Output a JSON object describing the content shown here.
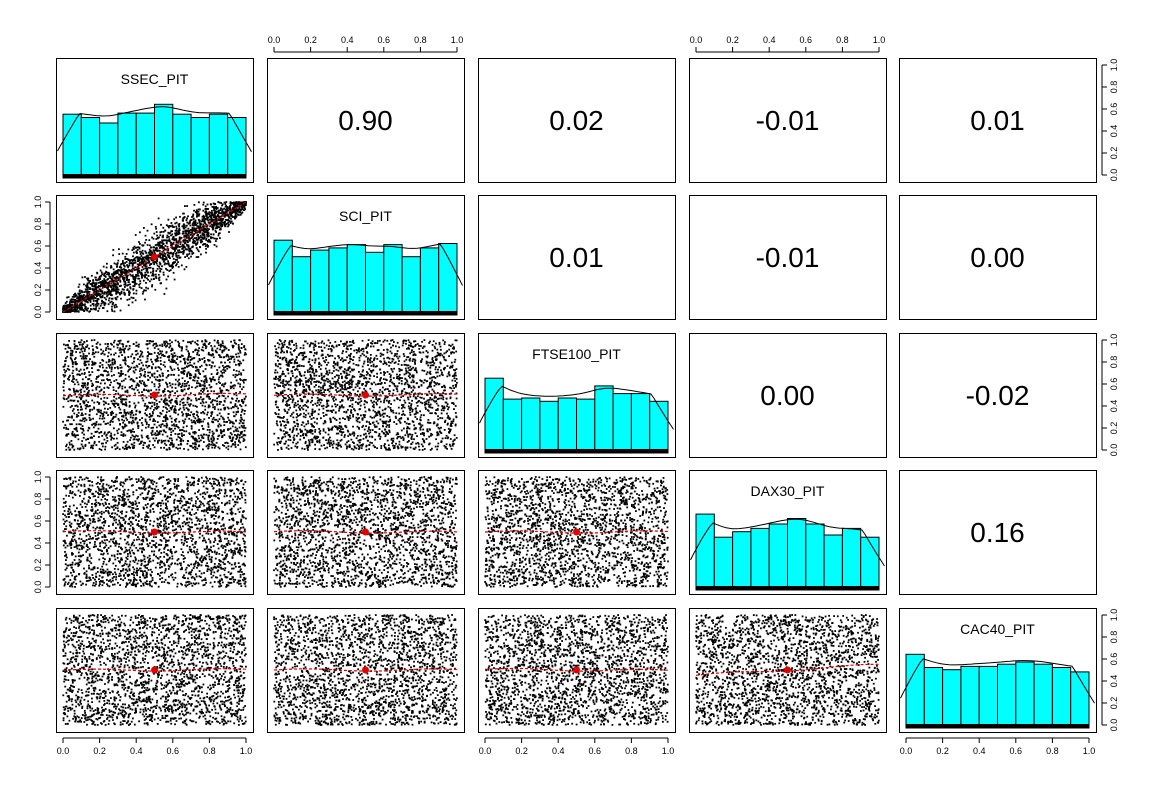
{
  "chart_data": {
    "type": "scatter-matrix",
    "variables": [
      "SSEC_PIT",
      "SCI_PIT",
      "FTSE100_PIT",
      "DAX30_PIT",
      "CAC40_PIT"
    ],
    "correlations": [
      {
        "row": 0,
        "col": 1,
        "value": "0.90"
      },
      {
        "row": 0,
        "col": 2,
        "value": "0.02"
      },
      {
        "row": 0,
        "col": 3,
        "value": "-0.01"
      },
      {
        "row": 0,
        "col": 4,
        "value": "0.01"
      },
      {
        "row": 1,
        "col": 2,
        "value": "0.01"
      },
      {
        "row": 1,
        "col": 3,
        "value": "-0.01"
      },
      {
        "row": 1,
        "col": 4,
        "value": "0.00"
      },
      {
        "row": 2,
        "col": 3,
        "value": "0.00"
      },
      {
        "row": 2,
        "col": 4,
        "value": "-0.02"
      },
      {
        "row": 3,
        "col": 4,
        "value": "0.16"
      }
    ],
    "scatter_correlations": [
      [
        1,
        0,
        0.9
      ],
      [
        2,
        0,
        0.02
      ],
      [
        2,
        1,
        0.01
      ],
      [
        3,
        0,
        -0.01
      ],
      [
        3,
        1,
        -0.01
      ],
      [
        3,
        2,
        0.0
      ],
      [
        4,
        0,
        0.01
      ],
      [
        4,
        1,
        0.0
      ],
      [
        4,
        2,
        -0.02
      ],
      [
        4,
        3,
        0.16
      ]
    ],
    "histograms": [
      {
        "variable": "SSEC_PIT",
        "bin_edges": [
          0,
          0.1,
          0.2,
          0.3,
          0.4,
          0.5,
          0.6,
          0.7,
          0.8,
          0.9,
          1.0
        ],
        "heights": [
          0.58,
          0.55,
          0.5,
          0.59,
          0.59,
          0.67,
          0.58,
          0.55,
          0.58,
          0.55
        ]
      },
      {
        "variable": "SCI_PIT",
        "bin_edges": [
          0,
          0.1,
          0.2,
          0.3,
          0.4,
          0.5,
          0.6,
          0.7,
          0.8,
          0.9,
          1.0
        ],
        "heights": [
          0.68,
          0.53,
          0.59,
          0.61,
          0.64,
          0.57,
          0.64,
          0.53,
          0.61,
          0.65
        ]
      },
      {
        "variable": "FTSE100_PIT",
        "bin_edges": [
          0,
          0.1,
          0.2,
          0.3,
          0.4,
          0.5,
          0.6,
          0.7,
          0.8,
          0.9,
          1.0
        ],
        "heights": [
          0.68,
          0.49,
          0.5,
          0.47,
          0.5,
          0.49,
          0.61,
          0.54,
          0.54,
          0.47
        ]
      },
      {
        "variable": "DAX30_PIT",
        "bin_edges": [
          0,
          0.1,
          0.2,
          0.3,
          0.4,
          0.5,
          0.6,
          0.7,
          0.8,
          0.9,
          1.0
        ],
        "heights": [
          0.69,
          0.48,
          0.53,
          0.56,
          0.6,
          0.65,
          0.6,
          0.5,
          0.56,
          0.48
        ]
      },
      {
        "variable": "CAC40_PIT",
        "bin_edges": [
          0,
          0.1,
          0.2,
          0.3,
          0.4,
          0.5,
          0.6,
          0.7,
          0.8,
          0.9,
          1.0
        ],
        "heights": [
          0.67,
          0.55,
          0.53,
          0.56,
          0.56,
          0.58,
          0.6,
          0.58,
          0.55,
          0.51
        ]
      }
    ],
    "axis_range": [
      0,
      1
    ],
    "ticks": [
      0.0,
      0.2,
      0.4,
      0.6,
      0.8,
      1.0
    ],
    "tick_labels": [
      "0.0",
      "0.2",
      "0.4",
      "0.6",
      "0.8",
      "1.0"
    ],
    "points_per_panel": 2200,
    "colors": {
      "histogram_fill": "#00ffff",
      "smooth_line": "#d40000",
      "points": "#000000"
    }
  }
}
